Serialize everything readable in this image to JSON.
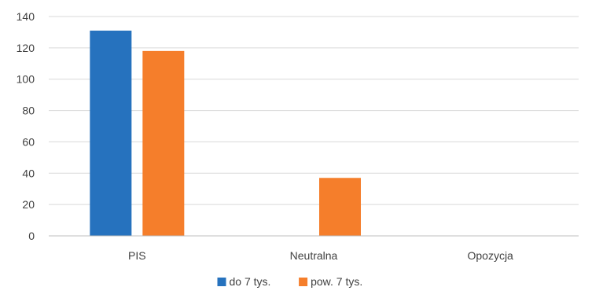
{
  "chart_data": {
    "type": "bar",
    "categories": [
      "PIS",
      "Neutralna",
      "Opozycja"
    ],
    "series": [
      {
        "name": "do 7 tys.",
        "values": [
          131,
          0,
          0
        ],
        "color": "#2672be"
      },
      {
        "name": "pow. 7 tys.",
        "values": [
          118,
          37,
          0
        ],
        "color": "#f57e2b"
      }
    ],
    "ylim": [
      0,
      140
    ],
    "yticks": [
      0,
      20,
      40,
      60,
      80,
      100,
      120,
      140
    ],
    "grid": true,
    "legend": "bottom"
  }
}
